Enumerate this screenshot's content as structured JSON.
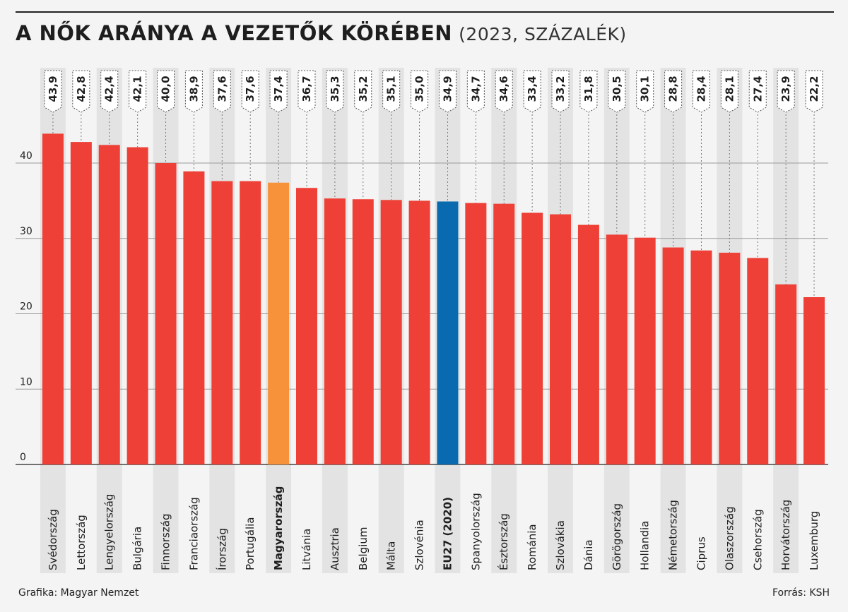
{
  "header": {
    "title": "A NŐK ARÁNYA A VEZETŐK KÖRÉBEN",
    "subtitle": "(2023, SZÁZALÉK)"
  },
  "footer": {
    "credit": "Grafika: Magyar Nemzet",
    "source": "Forrás: KSH"
  },
  "colors": {
    "default_bar": "#ee4036",
    "highlight_bar": "#f7923a",
    "eu_bar": "#0a6ab0",
    "band": "#e3e3e3",
    "grid": "#9a9a9a"
  },
  "chart_data": {
    "type": "bar",
    "title": "A NŐK ARÁNYA A VEZETŐK KÖRÉBEN (2023, SZÁZALÉK)",
    "xlabel": "",
    "ylabel": "",
    "ylim": [
      0,
      45
    ],
    "yticks": [
      0,
      10,
      20,
      30,
      40
    ],
    "grid": true,
    "categories": [
      "Svédország",
      "Lettország",
      "Lengyelország",
      "Bulgária",
      "Finnország",
      "Franciaország",
      "Írország",
      "Portugália",
      "Magyarország",
      "Litvánia",
      "Ausztria",
      "Belgium",
      "Málta",
      "Szlovénia",
      "EU27 (2020)",
      "Spanyolország",
      "Észtország",
      "Románia",
      "Szlovákia",
      "Dánia",
      "Görögország",
      "Hollandia",
      "Németország",
      "Ciprus",
      "Olaszország",
      "Csehország",
      "Horvátország",
      "Luxemburg"
    ],
    "values": [
      43.9,
      42.8,
      42.4,
      42.1,
      40.0,
      38.9,
      37.6,
      37.6,
      37.4,
      36.7,
      35.3,
      35.2,
      35.1,
      35.0,
      34.9,
      34.7,
      34.6,
      33.4,
      33.2,
      31.8,
      30.5,
      30.1,
      28.8,
      28.4,
      28.1,
      27.4,
      23.9,
      22.2
    ],
    "value_labels": [
      "43,9",
      "42,8",
      "42,4",
      "42,1",
      "40,0",
      "38,9",
      "37,6",
      "37,6",
      "37,4",
      "36,7",
      "35,3",
      "35,2",
      "35,1",
      "35,0",
      "34,9",
      "34,7",
      "34,6",
      "33,4",
      "33,2",
      "31,8",
      "30,5",
      "30,1",
      "28,8",
      "28,4",
      "28,1",
      "27,4",
      "23,9",
      "22,2"
    ],
    "highlight": "Magyarország",
    "reference": "EU27 (2020)"
  }
}
